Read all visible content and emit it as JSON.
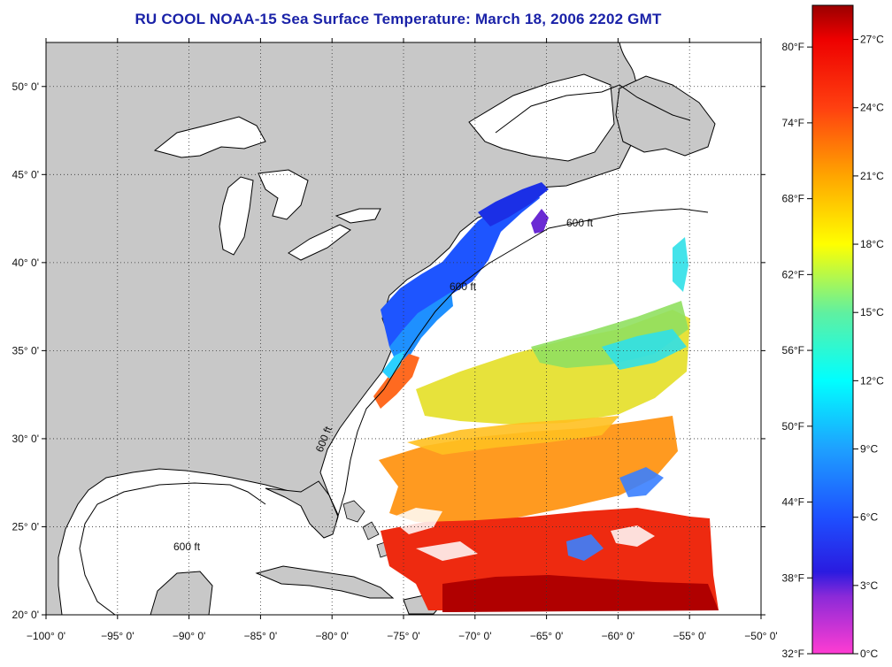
{
  "title": "RU COOL  NOAA-15  Sea Surface Temperature:  March 18, 2006 2202 GMT",
  "map": {
    "longitude_labels": [
      "−100° 0'",
      "−95° 0'",
      "−90° 0'",
      "−85° 0'",
      "−80° 0'",
      "−75° 0'",
      "−70° 0'",
      "−65° 0'",
      "−60° 0'",
      "−55° 0'",
      "−50° 0'"
    ],
    "latitude_labels": [
      "50° 0'",
      "45° 0'",
      "40° 0'",
      "35° 0'",
      "30° 0'",
      "25° 0'",
      "20° 0'"
    ],
    "lon_range": [
      -100,
      -50
    ],
    "lat_range": [
      20,
      52.5
    ],
    "isobath_label": "600 ft",
    "colors": {
      "land": "#c8c8c8",
      "water": "#ffffff",
      "outline": "#000000",
      "title": "#1a22a8"
    }
  },
  "colorbar": {
    "fahrenheit_labels": [
      "80°F",
      "74°F",
      "68°F",
      "62°F",
      "56°F",
      "50°F",
      "44°F",
      "38°F",
      "32°F"
    ],
    "celsius_labels": [
      "27°C",
      "24°C",
      "21°C",
      "18°C",
      "15°C",
      "12°C",
      "9°C",
      "6°C",
      "3°C",
      "0°C"
    ],
    "fahrenheit_values": [
      80,
      74,
      68,
      62,
      56,
      50,
      44,
      38,
      32
    ],
    "celsius_values": [
      27,
      24,
      21,
      18,
      15,
      12,
      9,
      6,
      3,
      0
    ],
    "range_c": [
      0,
      28.5
    ],
    "stops": [
      {
        "c": 0,
        "color": "#ff3cd2"
      },
      {
        "c": 2.5,
        "color": "#8c2ad8"
      },
      {
        "c": 3.6,
        "color": "#2a1be0"
      },
      {
        "c": 6,
        "color": "#1e50ff"
      },
      {
        "c": 9,
        "color": "#1ea0ff"
      },
      {
        "c": 12,
        "color": "#00ffff"
      },
      {
        "c": 15,
        "color": "#60f0a0"
      },
      {
        "c": 18,
        "color": "#ffff00"
      },
      {
        "c": 21,
        "color": "#ffa500"
      },
      {
        "c": 24,
        "color": "#ff4010"
      },
      {
        "c": 27,
        "color": "#ee0000"
      },
      {
        "c": 28.5,
        "color": "#9a0000"
      }
    ]
  }
}
